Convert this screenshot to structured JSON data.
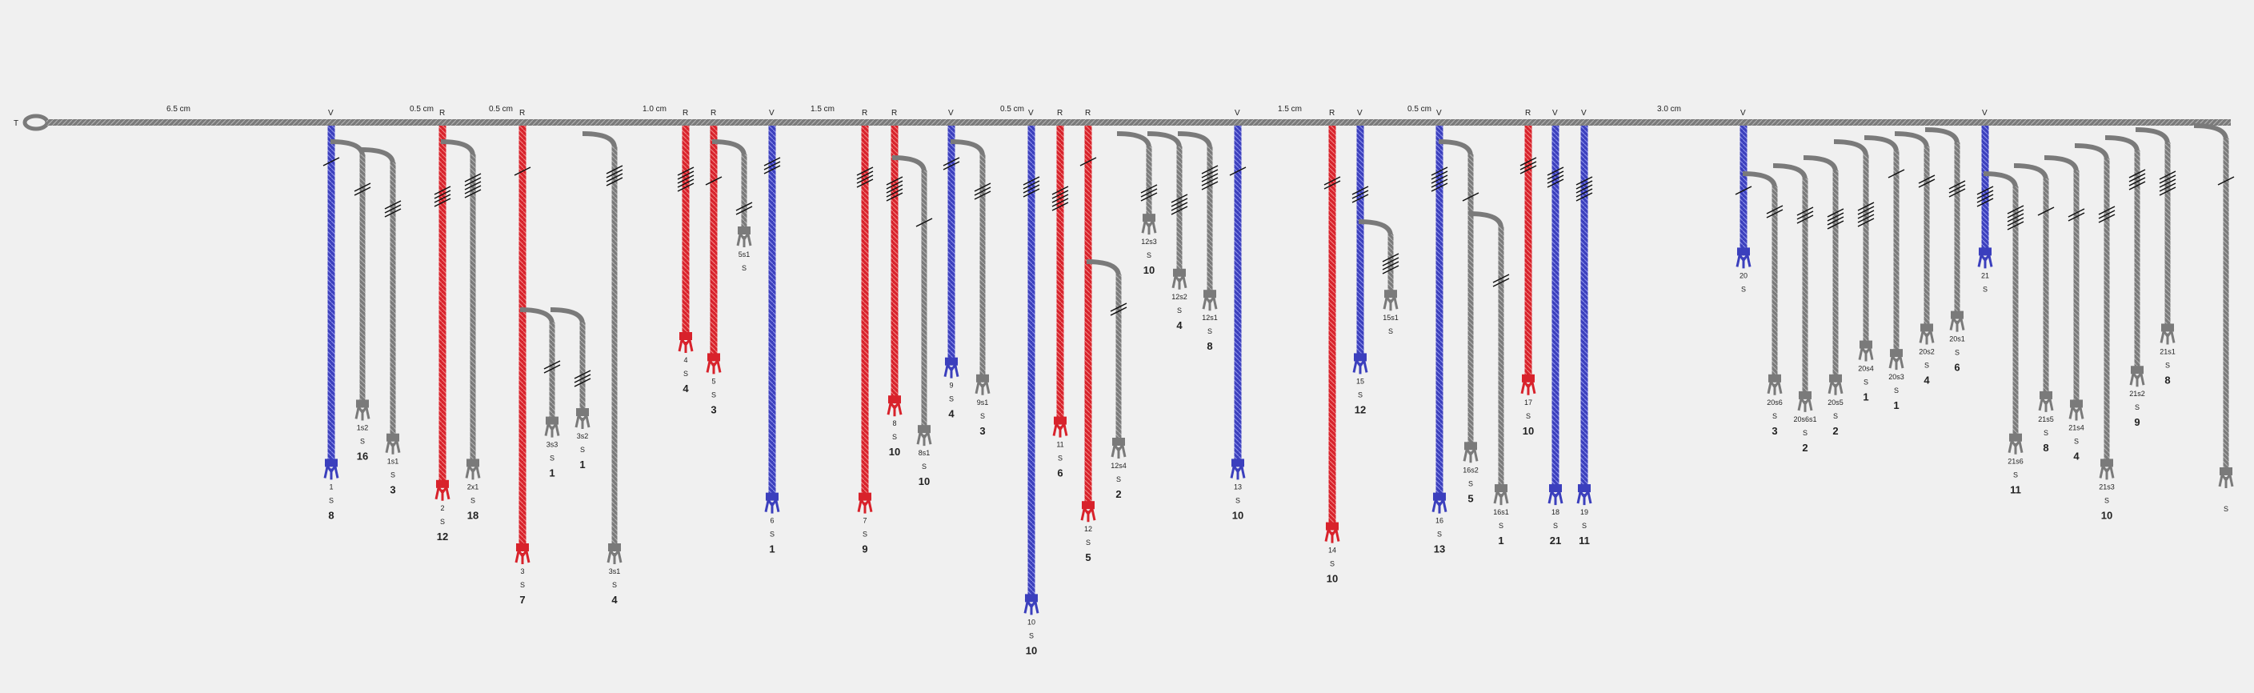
{
  "colors": {
    "background": "#f0f0f0",
    "blue": "#3b3fbd",
    "red": "#d8222b",
    "gray": "#7a7a7a",
    "knot": "#111111"
  },
  "primary": {
    "start_label": "T",
    "spacings": [
      "6.5 cm",
      "0.5 cm",
      "0.5 cm",
      "1.0 cm",
      "1.5 cm",
      "0.5 cm",
      "1.5 cm",
      "0.5 cm",
      "3.0 cm"
    ]
  },
  "cords": [
    {
      "id": "c1",
      "color": "blue",
      "top": "V",
      "labels": [
        "1",
        "S",
        "8"
      ],
      "len": 0.8
    },
    {
      "id": "c1s2",
      "color": "gray",
      "labels": [
        "1s2",
        "S",
        "16"
      ],
      "len": 0.66,
      "subsidiary": true
    },
    {
      "id": "c1s1",
      "color": "gray",
      "labels": [
        "1s1",
        "S",
        "3"
      ],
      "len": 0.74,
      "subsidiary": true
    },
    {
      "id": "c2",
      "color": "red",
      "top": "R",
      "labels": [
        "2",
        "S",
        "12"
      ],
      "len": 0.85
    },
    {
      "id": "c2s1",
      "color": "gray",
      "labels": [
        "2x1",
        "S",
        "18"
      ],
      "len": 0.8,
      "subsidiary": true
    },
    {
      "id": "c3",
      "color": "red",
      "top": "R",
      "labels": [
        "3",
        "S",
        "7"
      ],
      "len": 1.0
    },
    {
      "id": "c3s3",
      "color": "gray",
      "labels": [
        "3s3",
        "S",
        "1"
      ],
      "len": 0.7,
      "subsidiary": true
    },
    {
      "id": "c3s2",
      "color": "gray",
      "labels": [
        "3s2",
        "S",
        "1"
      ],
      "len": 0.68,
      "subsidiary": true
    },
    {
      "id": "c3s1",
      "color": "gray",
      "labels": [
        "3s1",
        "S",
        "4"
      ],
      "len": 1.0,
      "subsidiary": true
    },
    {
      "id": "c4",
      "color": "red",
      "top": "R",
      "labels": [
        "4",
        "S",
        "4"
      ],
      "len": 0.5
    },
    {
      "id": "c5",
      "color": "red",
      "top": "R",
      "labels": [
        "5",
        "S",
        "3"
      ],
      "len": 0.55
    },
    {
      "id": "c5s1",
      "color": "gray",
      "labels": [
        "5s1",
        "S",
        ""
      ],
      "len": 0.25,
      "subsidiary": true
    },
    {
      "id": "c6",
      "color": "blue",
      "top": "V",
      "labels": [
        "6",
        "S",
        "1"
      ],
      "len": 0.88
    },
    {
      "id": "c7",
      "color": "red",
      "top": "R",
      "labels": [
        "7",
        "S",
        "9"
      ],
      "len": 0.88
    },
    {
      "id": "c8",
      "color": "red",
      "top": "R",
      "labels": [
        "8",
        "S",
        "10"
      ],
      "len": 0.65
    },
    {
      "id": "c8s1",
      "color": "gray",
      "labels": [
        "8s1",
        "S",
        "10"
      ],
      "len": 0.72,
      "subsidiary": true
    },
    {
      "id": "c9",
      "color": "blue",
      "top": "V",
      "labels": [
        "9",
        "S",
        "4"
      ],
      "len": 0.56
    },
    {
      "id": "c9s1",
      "color": "gray",
      "labels": [
        "9s1",
        "S",
        "3"
      ],
      "len": 0.6,
      "subsidiary": true
    },
    {
      "id": "c10",
      "color": "blue",
      "top": "V",
      "labels": [
        "10",
        "S",
        "10"
      ],
      "len": 1.12
    },
    {
      "id": "c11",
      "color": "red",
      "top": "R",
      "labels": [
        "11",
        "S",
        "6"
      ],
      "len": 0.7
    },
    {
      "id": "c12",
      "color": "red",
      "top": "R",
      "labels": [
        "12",
        "S",
        "5"
      ],
      "len": 0.9
    },
    {
      "id": "c12s4",
      "color": "gray",
      "labels": [
        "12s4",
        "S",
        "2"
      ],
      "len": 0.75,
      "subsidiary": true
    },
    {
      "id": "c12s3",
      "color": "gray",
      "labels": [
        "12s3",
        "S",
        "10"
      ],
      "len": 0.22,
      "subsidiary": true
    },
    {
      "id": "c12s2",
      "color": "gray",
      "labels": [
        "12s2",
        "S",
        "4"
      ],
      "len": 0.35,
      "subsidiary": true
    },
    {
      "id": "c12s1",
      "color": "gray",
      "labels": [
        "12s1",
        "S",
        "8"
      ],
      "len": 0.4,
      "subsidiary": true
    },
    {
      "id": "c13",
      "color": "blue",
      "top": "V",
      "labels": [
        "13",
        "S",
        "10"
      ],
      "len": 0.8
    },
    {
      "id": "c14",
      "color": "red",
      "top": "R",
      "labels": [
        "14",
        "S",
        "10"
      ],
      "len": 0.95
    },
    {
      "id": "c15",
      "color": "blue",
      "top": "V",
      "labels": [
        "15",
        "S",
        "12"
      ],
      "len": 0.55
    },
    {
      "id": "c15s1",
      "color": "gray",
      "labels": [
        "15s1",
        "S",
        ""
      ],
      "len": 0.4,
      "subsidiary": true
    },
    {
      "id": "c16",
      "color": "blue",
      "top": "V",
      "labels": [
        "16",
        "S",
        "13"
      ],
      "len": 0.88
    },
    {
      "id": "c16s2",
      "color": "gray",
      "labels": [
        "16s2",
        "S",
        "5"
      ],
      "len": 0.76,
      "subsidiary": true
    },
    {
      "id": "c16s1",
      "color": "gray",
      "labels": [
        "16s1",
        "S",
        "1"
      ],
      "len": 0.86,
      "subsidiary": true
    },
    {
      "id": "c17",
      "color": "red",
      "top": "R",
      "labels": [
        "17",
        "S",
        "10"
      ],
      "len": 0.6
    },
    {
      "id": "c18",
      "color": "blue",
      "top": "V",
      "labels": [
        "18",
        "S",
        "21"
      ],
      "len": 0.86
    },
    {
      "id": "c19",
      "color": "blue",
      "top": "V",
      "labels": [
        "19",
        "S",
        "11"
      ],
      "len": 0.86
    },
    {
      "id": "c20",
      "color": "blue",
      "top": "V",
      "labels": [
        "20",
        "S",
        ""
      ],
      "len": 0.3
    },
    {
      "id": "c20s6",
      "color": "gray",
      "labels": [
        "20s6",
        "S",
        "3"
      ],
      "len": 0.6,
      "subsidiary": true
    },
    {
      "id": "c20s6s1",
      "color": "gray",
      "labels": [
        "20s6s1",
        "S",
        "2"
      ],
      "len": 0.64,
      "subsidiary": true
    },
    {
      "id": "c20s5",
      "color": "gray",
      "labels": [
        "20s5",
        "S",
        "2"
      ],
      "len": 0.6,
      "subsidiary": true
    },
    {
      "id": "c20s4",
      "color": "gray",
      "labels": [
        "20s4",
        "S",
        "1"
      ],
      "len": 0.52,
      "subsidiary": true
    },
    {
      "id": "c20s3",
      "color": "gray",
      "labels": [
        "20s3",
        "S",
        "1"
      ],
      "len": 0.54,
      "subsidiary": true
    },
    {
      "id": "c20s2",
      "color": "gray",
      "labels": [
        "20s2",
        "S",
        "4"
      ],
      "len": 0.48,
      "subsidiary": true
    },
    {
      "id": "c20s1",
      "color": "gray",
      "labels": [
        "20s1",
        "S",
        "6"
      ],
      "len": 0.45,
      "subsidiary": true
    },
    {
      "id": "c21",
      "color": "blue",
      "top": "V",
      "labels": [
        "21",
        "S",
        ""
      ],
      "len": 0.3
    },
    {
      "id": "c21s6",
      "color": "gray",
      "labels": [
        "21s6",
        "S",
        "11"
      ],
      "len": 0.74,
      "subsidiary": true
    },
    {
      "id": "c21s5",
      "color": "gray",
      "labels": [
        "21s5",
        "S",
        "8"
      ],
      "len": 0.64,
      "subsidiary": true
    },
    {
      "id": "c21s4",
      "color": "gray",
      "labels": [
        "21s4",
        "S",
        "4"
      ],
      "len": 0.66,
      "subsidiary": true
    },
    {
      "id": "c21s3",
      "color": "gray",
      "labels": [
        "21s3",
        "S",
        "10"
      ],
      "len": 0.8,
      "subsidiary": true
    },
    {
      "id": "c21s2",
      "color": "gray",
      "labels": [
        "21s2",
        "S",
        "9"
      ],
      "len": 0.58,
      "subsidiary": true
    },
    {
      "id": "c21s1",
      "color": "gray",
      "labels": [
        "21s1",
        "S",
        "8"
      ],
      "len": 0.48,
      "subsidiary": true
    },
    {
      "id": "cend",
      "color": "gray",
      "labels": [
        "",
        "S",
        ""
      ],
      "len": 0.82,
      "subsidiary": true
    }
  ]
}
